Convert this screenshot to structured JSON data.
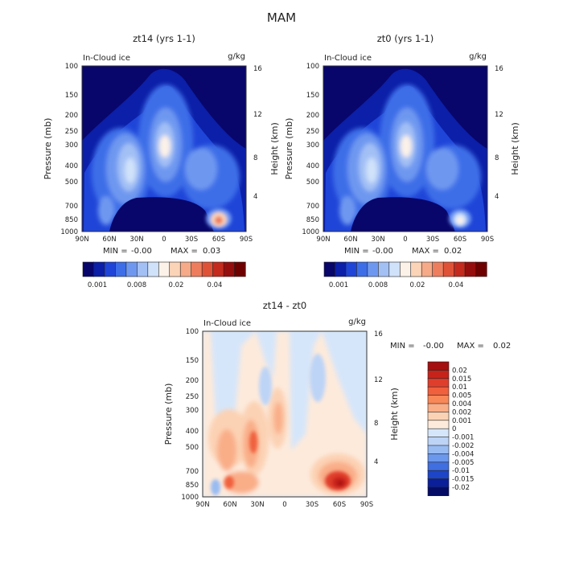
{
  "page_title": "MAM",
  "chart_data": [
    {
      "type": "heatmap",
      "title": "zt14 (yrs 1-1)",
      "field_label": "In-Cloud ice",
      "units": "g/kg",
      "xlabel": "",
      "ylabel": "Pressure (mb)",
      "y2label": "Height (km)",
      "x_ticks": [
        "90N",
        "60N",
        "30N",
        "0",
        "30S",
        "60S",
        "90S"
      ],
      "y_ticks": [
        "100",
        "150",
        "200",
        "250",
        "300",
        "400",
        "500",
        "700",
        "850",
        "1000"
      ],
      "y2_ticks": [
        "16",
        "12",
        "8",
        "4"
      ],
      "stats": {
        "min_label": "MIN =",
        "min_value": "-0.00",
        "max_label": "MAX =",
        "max_value": "0.03"
      },
      "colorbar": {
        "orientation": "horizontal",
        "tick_labels": [
          "0.001",
          "0.008",
          "0.02",
          "0.04"
        ],
        "colors": [
          "#08066b",
          "#0b1fa8",
          "#1f45d8",
          "#3d6ee8",
          "#6e98f0",
          "#a3c0f5",
          "#d0e2fa",
          "#fdf2e8",
          "#fbd4b8",
          "#f6aa88",
          "#ee7d5e",
          "#e05238",
          "#c42a1e",
          "#960d0d",
          "#6e0000"
        ]
      },
      "features": [
        {
          "name": "tropical upper maximum",
          "lat": 2,
          "pressure_mb": 300,
          "value": 0.012
        },
        {
          "name": "NH midlatitude maximum",
          "lat": 35,
          "pressure_mb": 420,
          "value": 0.01
        },
        {
          "name": "NH low-level",
          "lat": 62,
          "pressure_mb": 830,
          "value": 0.008
        },
        {
          "name": "SH low-level maximum",
          "lat": -62,
          "pressure_mb": 840,
          "value": 0.03
        }
      ]
    },
    {
      "type": "heatmap",
      "title": "zt0 (yrs 1-1)",
      "field_label": "In-Cloud ice",
      "units": "g/kg",
      "xlabel": "",
      "ylabel": "Pressure (mb)",
      "y2label": "Height (km)",
      "x_ticks": [
        "90N",
        "60N",
        "30N",
        "0",
        "30S",
        "60S",
        "90S"
      ],
      "y_ticks": [
        "100",
        "150",
        "200",
        "250",
        "300",
        "400",
        "500",
        "700",
        "850",
        "1000"
      ],
      "y2_ticks": [
        "16",
        "12",
        "8",
        "4"
      ],
      "stats": {
        "min_label": "MIN =",
        "min_value": "-0.00",
        "max_label": "MAX =",
        "max_value": "0.02"
      },
      "colorbar": {
        "orientation": "horizontal",
        "tick_labels": [
          "0.001",
          "0.008",
          "0.02",
          "0.04"
        ],
        "colors": [
          "#08066b",
          "#0b1fa8",
          "#1f45d8",
          "#3d6ee8",
          "#6e98f0",
          "#a3c0f5",
          "#d0e2fa",
          "#fdf2e8",
          "#fbd4b8",
          "#f6aa88",
          "#ee7d5e",
          "#e05238",
          "#c42a1e",
          "#960d0d",
          "#6e0000"
        ]
      },
      "features": [
        {
          "name": "tropical upper maximum",
          "lat": 2,
          "pressure_mb": 300,
          "value": 0.012
        },
        {
          "name": "NH midlatitude maximum",
          "lat": 35,
          "pressure_mb": 420,
          "value": 0.01
        },
        {
          "name": "NH low-level",
          "lat": 62,
          "pressure_mb": 830,
          "value": 0.008
        },
        {
          "name": "SH low-level maximum",
          "lat": -62,
          "pressure_mb": 840,
          "value": 0.012
        }
      ]
    },
    {
      "type": "heatmap",
      "title": "zt14 - zt0",
      "field_label": "In-Cloud ice",
      "units": "g/kg",
      "xlabel": "",
      "ylabel": "Pressure (mb)",
      "y2label": "Height (km)",
      "x_ticks": [
        "90N",
        "60N",
        "30N",
        "0",
        "30S",
        "60S",
        "90S"
      ],
      "y_ticks": [
        "100",
        "150",
        "200",
        "250",
        "300",
        "400",
        "500",
        "700",
        "850",
        "1000"
      ],
      "y2_ticks": [
        "16",
        "12",
        "8",
        "4"
      ],
      "stats": {
        "min_label": "MIN =",
        "min_value": "-0.00",
        "max_label": "MAX =",
        "max_value": "0.02"
      },
      "colorbar": {
        "orientation": "vertical",
        "tick_labels": [
          "0.02",
          "0.015",
          "0.01",
          "0.005",
          "0.004",
          "0.002",
          "0.001",
          "0",
          "-0.001",
          "-0.002",
          "-0.004",
          "-0.005",
          "-0.01",
          "-0.015",
          "-0.02"
        ],
        "colors": [
          "#a50f0f",
          "#c8231a",
          "#e03e2c",
          "#f0603c",
          "#f88858",
          "#f9ae88",
          "#fcd2b4",
          "#fdeadb",
          "#d6e6fa",
          "#bdd4f7",
          "#98bbf2",
          "#6b98ec",
          "#3f6fe0",
          "#1d45c8",
          "#0b1f9a",
          "#040c66"
        ]
      },
      "features": [
        {
          "name": "SH low-level positive difference",
          "lat": -62,
          "pressure_mb": 840,
          "value": 0.02
        },
        {
          "name": "NH low-level positive difference",
          "lat": 62,
          "pressure_mb": 840,
          "value": 0.01
        },
        {
          "name": "NH midlatitude positive difference",
          "lat": 32,
          "pressure_mb": 480,
          "value": 0.008
        }
      ]
    }
  ]
}
